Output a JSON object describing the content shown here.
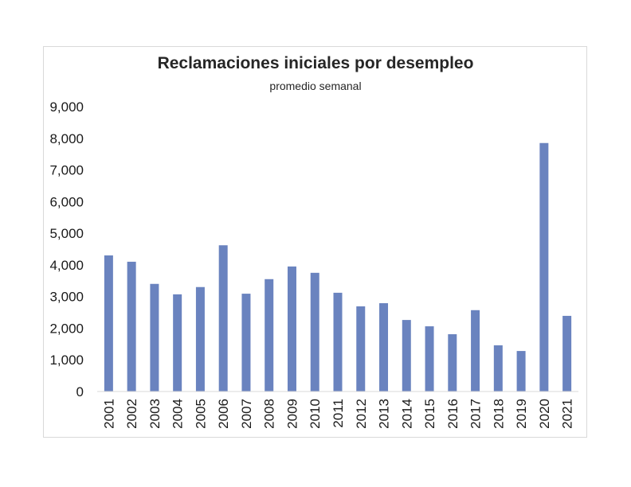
{
  "chart_data": {
    "type": "bar",
    "title": "Reclamaciones iniciales por desempleo",
    "subtitle": "promedio semanal",
    "categories": [
      "2001",
      "2002",
      "2003",
      "2004",
      "2005",
      "2006",
      "2007",
      "2008",
      "2009",
      "2010",
      "2011",
      "2012",
      "2013",
      "2014",
      "2015",
      "2016",
      "2017",
      "2018",
      "2019",
      "2020",
      "2021"
    ],
    "values": [
      4300,
      4100,
      3400,
      3070,
      3300,
      4620,
      3090,
      3550,
      3950,
      3750,
      3120,
      2690,
      2790,
      2260,
      2060,
      1810,
      2570,
      1460,
      1280,
      7850,
      2390
    ],
    "ylim": [
      0,
      9000
    ],
    "yticks": [
      0,
      1000,
      2000,
      3000,
      4000,
      5000,
      6000,
      7000,
      8000,
      9000
    ],
    "ytick_labels": [
      "0",
      "1,000",
      "2,000",
      "3,000",
      "4,000",
      "5,000",
      "6,000",
      "7,000",
      "8,000",
      "9,000"
    ],
    "bar_color": "#6a83bf",
    "grid": false,
    "legend": "none"
  }
}
